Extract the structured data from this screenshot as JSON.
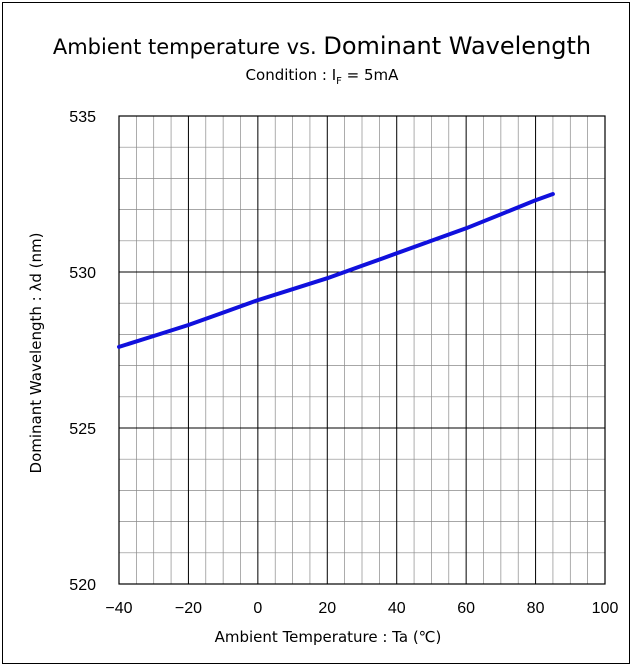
{
  "chart_data": {
    "type": "line",
    "title_part1": "Ambient temperature vs. ",
    "title_part2": "Dominant Wavelength",
    "subtitle_prefix": "Condition : I",
    "subtitle_sub": "F",
    "subtitle_suffix": " = 5mA",
    "xlabel": "Ambient Temperature : Ta (℃)",
    "ylabel": "Dominant Wavelength : λd (nm)",
    "xlim": [
      -40,
      100
    ],
    "ylim": [
      520,
      535
    ],
    "x_major_ticks": [
      -40,
      -20,
      0,
      20,
      40,
      60,
      80,
      100
    ],
    "x_tick_labels": [
      "−40",
      "−20",
      "0",
      "20",
      "40",
      "60",
      "80",
      "100"
    ],
    "x_minor_step": 5,
    "y_major_ticks": [
      520,
      525,
      530,
      535
    ],
    "y_tick_labels": [
      "520",
      "525",
      "530",
      "535"
    ],
    "y_minor_step": 1,
    "grid": true,
    "line_color": "#1010dd",
    "series": [
      {
        "x": [
          -40,
          -30,
          -20,
          -10,
          0,
          10,
          20,
          30,
          40,
          50,
          60,
          70,
          80,
          85
        ],
        "y": [
          527.6,
          527.95,
          528.3,
          528.7,
          529.1,
          529.45,
          529.8,
          530.2,
          530.6,
          531.0,
          531.4,
          531.85,
          532.3,
          532.5
        ]
      }
    ]
  }
}
